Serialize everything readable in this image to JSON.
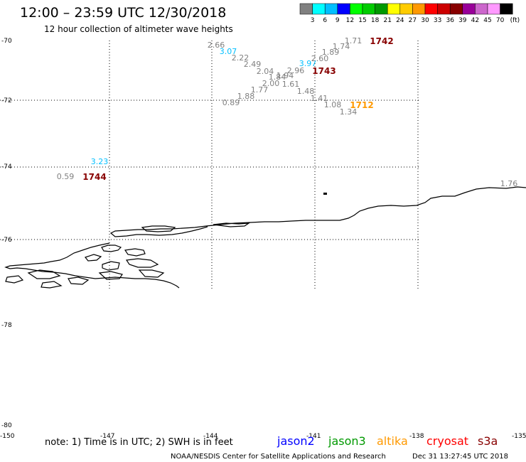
{
  "header": {
    "title": "12:00 – 23:59 UTC 12/30/2018",
    "subtitle": "12 hour collection of altimeter wave heights"
  },
  "legend": {
    "colors": [
      "#808080",
      "#00ffff",
      "#00bfff",
      "#0000ff",
      "#00ff00",
      "#00cc00",
      "#009900",
      "#ffff00",
      "#ffcc00",
      "#ff9900",
      "#ff0000",
      "#cc0000",
      "#880000",
      "#990099",
      "#cc66cc",
      "#ff99ff",
      "#000000"
    ],
    "labels": [
      "3",
      "6",
      "9",
      "12",
      "15",
      "18",
      "21",
      "24",
      "27",
      "30",
      "33",
      "36",
      "39",
      "42",
      "45",
      "70"
    ],
    "unit": "(ft)"
  },
  "axes": {
    "lat_labels": [
      "-70",
      "-72",
      "-74",
      "-76",
      "-78",
      "-80"
    ],
    "lon_labels": [
      "-150",
      "-147",
      "-144",
      "-141",
      "-138",
      "-135"
    ]
  },
  "observations": [
    {
      "text": "2.66",
      "color": "#808080"
    },
    {
      "text": "3.07",
      "color": "#00bfff"
    },
    {
      "text": "2.22",
      "color": "#808080"
    },
    {
      "text": "2.49",
      "color": "#808080"
    },
    {
      "text": "2.04",
      "color": "#808080"
    },
    {
      "text": "1.84",
      "color": "#808080"
    },
    {
      "text": "1.94",
      "color": "#808080"
    },
    {
      "text": "2.96",
      "color": "#808080"
    },
    {
      "text": "2.00",
      "color": "#808080"
    },
    {
      "text": "1.61",
      "color": "#808080"
    },
    {
      "text": "1.77",
      "color": "#808080"
    },
    {
      "text": "1.88",
      "color": "#808080"
    },
    {
      "text": "0.89",
      "color": "#808080"
    },
    {
      "text": "3.97",
      "color": "#00bfff"
    },
    {
      "text": "2.60",
      "color": "#808080"
    },
    {
      "text": "1.89",
      "color": "#808080"
    },
    {
      "text": "1.74",
      "color": "#808080"
    },
    {
      "text": "1.71",
      "color": "#808080"
    },
    {
      "text": "1.48",
      "color": "#808080"
    },
    {
      "text": "1.41",
      "color": "#808080"
    },
    {
      "text": "1.08",
      "color": "#808080"
    },
    {
      "text": "1.34",
      "color": "#808080"
    },
    {
      "text": "3.23",
      "color": "#00bfff"
    },
    {
      "text": "0.59",
      "color": "#808080"
    },
    {
      "text": "1.76",
      "color": "#808080"
    }
  ],
  "time_labels": [
    {
      "text": "1742",
      "color": "#880000"
    },
    {
      "text": "1743",
      "color": "#880000"
    },
    {
      "text": "1712",
      "color": "#ff9900"
    },
    {
      "text": "1744",
      "color": "#880000"
    }
  ],
  "footer": {
    "note": "note: 1) Time is in UTC; 2) SWH is in feet",
    "satellites": [
      {
        "name": "jason2",
        "color": "#0000ff"
      },
      {
        "name": "jason3",
        "color": "#009900"
      },
      {
        "name": "altika",
        "color": "#ff9900"
      },
      {
        "name": "cryosat",
        "color": "#ff0000"
      },
      {
        "name": "s3a",
        "color": "#880000"
      }
    ],
    "credit": "NOAA/NESDIS Center for Satellite Applications and Research",
    "timestamp": "Dec 31 13:27:45 UTC 2018"
  }
}
